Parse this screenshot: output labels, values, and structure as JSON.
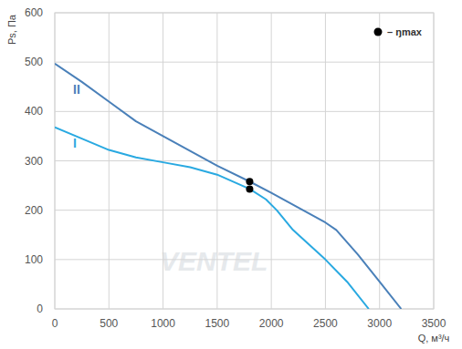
{
  "chart_data": {
    "type": "line",
    "x_label": "Q, м³/ч",
    "y_label": "Ps, Па",
    "watermark": "VENTEL",
    "legend_label": "– ŋmax",
    "xlim": [
      0,
      3500
    ],
    "ylim": [
      0,
      600
    ],
    "xticks": [
      0,
      500,
      1000,
      1500,
      2000,
      2500,
      3000,
      3500
    ],
    "yticks": [
      0,
      100,
      200,
      300,
      400,
      500,
      600
    ],
    "grid": true,
    "series": [
      {
        "name": "II",
        "color": "#4a80b9",
        "x": [
          0,
          250,
          500,
          750,
          1000,
          1250,
          1500,
          1800,
          2000,
          2250,
          2500,
          2600,
          2800,
          3000,
          3200
        ],
        "values": [
          497,
          460,
          420,
          380,
          350,
          320,
          290,
          258,
          235,
          205,
          175,
          160,
          110,
          55,
          0
        ],
        "eta_max": {
          "x": 1800,
          "y": 258
        }
      },
      {
        "name": "I",
        "color": "#29a9e1",
        "x": [
          0,
          250,
          500,
          750,
          1000,
          1250,
          1500,
          1800,
          1950,
          2050,
          2200,
          2500,
          2700,
          2900
        ],
        "values": [
          368,
          345,
          322,
          307,
          297,
          287,
          272,
          243,
          222,
          200,
          160,
          100,
          55,
          0
        ],
        "eta_max": {
          "x": 1800,
          "y": 243
        }
      }
    ]
  }
}
